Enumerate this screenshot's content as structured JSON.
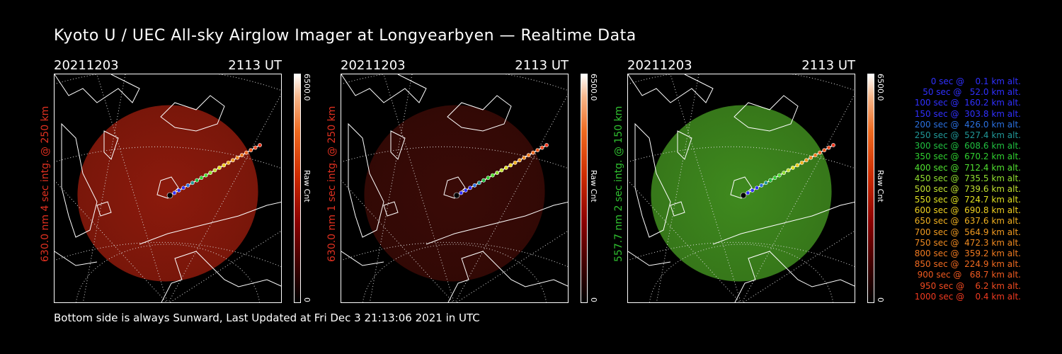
{
  "title": "Kyoto U / UEC All-sky Airglow Imager at Longyearbyen — Realtime Data",
  "panels": [
    {
      "date": "20211203",
      "time": "2113 UT",
      "ylabel": "630.0 nm 4 sec intg. @ 250 km",
      "ylabel_color": "#e03020",
      "cbar_max": "6500.0",
      "cbar_min": "0",
      "cbar_unit": "Raw Cnt",
      "glow_color": "#8c1a0c",
      "glow_opacity": 1.0
    },
    {
      "date": "20211203",
      "time": "2113 UT",
      "ylabel": "630.0 nm 1 sec intg. @ 250 km",
      "ylabel_color": "#e03020",
      "cbar_max": "6500.0",
      "cbar_min": "0",
      "cbar_unit": "Raw Cnt",
      "glow_color": "#3a0a06",
      "glow_opacity": 1.0
    },
    {
      "date": "20211203",
      "time": "2113 UT",
      "ylabel": "557.7 nm 2 sec intg. @ 150 km",
      "ylabel_color": "#30c030",
      "cbar_max": "6500.0",
      "cbar_min": "0",
      "cbar_unit": "Raw Cnt",
      "glow_color": "#3f8a1e",
      "glow_opacity": 1.0
    }
  ],
  "legend": [
    {
      "text": "0 sec @    0.1 km alt.",
      "color": "#3030ff"
    },
    {
      "text": "50 sec @   52.0 km alt.",
      "color": "#3030ff"
    },
    {
      "text": "100 sec @  160.2 km alt.",
      "color": "#3030ff"
    },
    {
      "text": "150 sec @  303.8 km alt.",
      "color": "#3030ff"
    },
    {
      "text": "200 sec @  426.0 km alt.",
      "color": "#2a70e0"
    },
    {
      "text": "250 sec @  527.4 km alt.",
      "color": "#209898"
    },
    {
      "text": "300 sec @  608.6 km alt.",
      "color": "#20c040"
    },
    {
      "text": "350 sec @  670.2 km alt.",
      "color": "#30d030"
    },
    {
      "text": "400 sec @  712.4 km alt.",
      "color": "#50e030"
    },
    {
      "text": "450 sec @  735.5 km alt.",
      "color": "#90e030"
    },
    {
      "text": "500 sec @  739.6 km alt.",
      "color": "#c0e030"
    },
    {
      "text": "550 sec @  724.7 km alt.",
      "color": "#e0e020"
    },
    {
      "text": "600 sec @  690.8 km alt.",
      "color": "#f0d020"
    },
    {
      "text": "650 sec @  637.6 km alt.",
      "color": "#f0b020"
    },
    {
      "text": "700 sec @  564.9 km alt.",
      "color": "#f09a20"
    },
    {
      "text": "750 sec @  472.3 km alt.",
      "color": "#f08a20"
    },
    {
      "text": "800 sec @  359.2 km alt.",
      "color": "#f07a20"
    },
    {
      "text": "850 sec @  224.9 km alt.",
      "color": "#f06a20"
    },
    {
      "text": "900 sec @   68.7 km alt.",
      "color": "#f05a20"
    },
    {
      "text": "950 sec @    6.2 km alt.",
      "color": "#f04a20"
    },
    {
      "text": "1000 sec @    0.4 km alt.",
      "color": "#f03a20"
    }
  ],
  "footer": "Bottom side is always Sunward, Last Updated at Fri Dec  3 21:13:06 2021 in UTC"
}
